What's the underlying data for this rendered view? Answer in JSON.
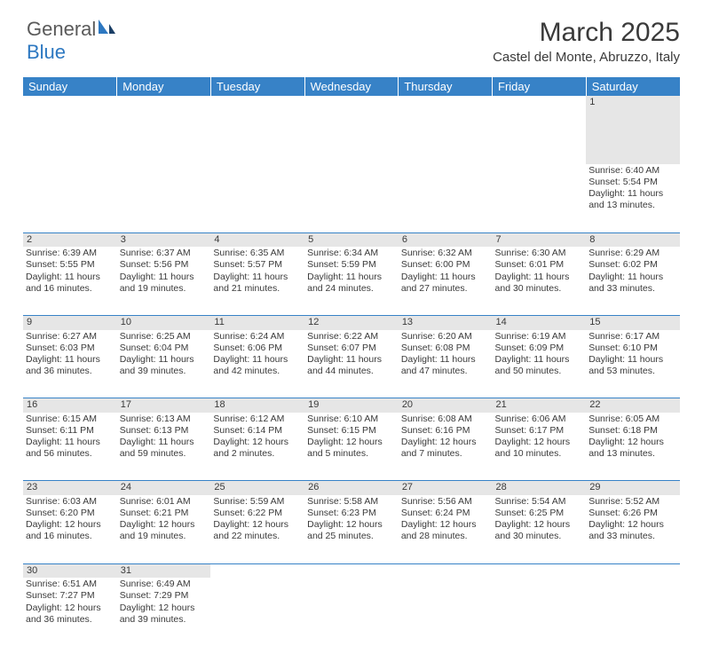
{
  "logo": {
    "part1": "General",
    "part2": "Blue"
  },
  "title": "March 2025",
  "location": "Castel del Monte, Abruzzo, Italy",
  "colors": {
    "header_bg": "#3782c7",
    "header_fg": "#ffffff",
    "daynum_bg": "#e6e6e6",
    "text": "#3a3a3a",
    "rule": "#3782c7"
  },
  "dayHeaders": [
    "Sunday",
    "Monday",
    "Tuesday",
    "Wednesday",
    "Thursday",
    "Friday",
    "Saturday"
  ],
  "weeks": [
    [
      null,
      null,
      null,
      null,
      null,
      null,
      {
        "n": "1",
        "sr": "6:40 AM",
        "ss": "5:54 PM",
        "dl": "11 hours and 13 minutes."
      }
    ],
    [
      {
        "n": "2",
        "sr": "6:39 AM",
        "ss": "5:55 PM",
        "dl": "11 hours and 16 minutes."
      },
      {
        "n": "3",
        "sr": "6:37 AM",
        "ss": "5:56 PM",
        "dl": "11 hours and 19 minutes."
      },
      {
        "n": "4",
        "sr": "6:35 AM",
        "ss": "5:57 PM",
        "dl": "11 hours and 21 minutes."
      },
      {
        "n": "5",
        "sr": "6:34 AM",
        "ss": "5:59 PM",
        "dl": "11 hours and 24 minutes."
      },
      {
        "n": "6",
        "sr": "6:32 AM",
        "ss": "6:00 PM",
        "dl": "11 hours and 27 minutes."
      },
      {
        "n": "7",
        "sr": "6:30 AM",
        "ss": "6:01 PM",
        "dl": "11 hours and 30 minutes."
      },
      {
        "n": "8",
        "sr": "6:29 AM",
        "ss": "6:02 PM",
        "dl": "11 hours and 33 minutes."
      }
    ],
    [
      {
        "n": "9",
        "sr": "6:27 AM",
        "ss": "6:03 PM",
        "dl": "11 hours and 36 minutes."
      },
      {
        "n": "10",
        "sr": "6:25 AM",
        "ss": "6:04 PM",
        "dl": "11 hours and 39 minutes."
      },
      {
        "n": "11",
        "sr": "6:24 AM",
        "ss": "6:06 PM",
        "dl": "11 hours and 42 minutes."
      },
      {
        "n": "12",
        "sr": "6:22 AM",
        "ss": "6:07 PM",
        "dl": "11 hours and 44 minutes."
      },
      {
        "n": "13",
        "sr": "6:20 AM",
        "ss": "6:08 PM",
        "dl": "11 hours and 47 minutes."
      },
      {
        "n": "14",
        "sr": "6:19 AM",
        "ss": "6:09 PM",
        "dl": "11 hours and 50 minutes."
      },
      {
        "n": "15",
        "sr": "6:17 AM",
        "ss": "6:10 PM",
        "dl": "11 hours and 53 minutes."
      }
    ],
    [
      {
        "n": "16",
        "sr": "6:15 AM",
        "ss": "6:11 PM",
        "dl": "11 hours and 56 minutes."
      },
      {
        "n": "17",
        "sr": "6:13 AM",
        "ss": "6:13 PM",
        "dl": "11 hours and 59 minutes."
      },
      {
        "n": "18",
        "sr": "6:12 AM",
        "ss": "6:14 PM",
        "dl": "12 hours and 2 minutes."
      },
      {
        "n": "19",
        "sr": "6:10 AM",
        "ss": "6:15 PM",
        "dl": "12 hours and 5 minutes."
      },
      {
        "n": "20",
        "sr": "6:08 AM",
        "ss": "6:16 PM",
        "dl": "12 hours and 7 minutes."
      },
      {
        "n": "21",
        "sr": "6:06 AM",
        "ss": "6:17 PM",
        "dl": "12 hours and 10 minutes."
      },
      {
        "n": "22",
        "sr": "6:05 AM",
        "ss": "6:18 PM",
        "dl": "12 hours and 13 minutes."
      }
    ],
    [
      {
        "n": "23",
        "sr": "6:03 AM",
        "ss": "6:20 PM",
        "dl": "12 hours and 16 minutes."
      },
      {
        "n": "24",
        "sr": "6:01 AM",
        "ss": "6:21 PM",
        "dl": "12 hours and 19 minutes."
      },
      {
        "n": "25",
        "sr": "5:59 AM",
        "ss": "6:22 PM",
        "dl": "12 hours and 22 minutes."
      },
      {
        "n": "26",
        "sr": "5:58 AM",
        "ss": "6:23 PM",
        "dl": "12 hours and 25 minutes."
      },
      {
        "n": "27",
        "sr": "5:56 AM",
        "ss": "6:24 PM",
        "dl": "12 hours and 28 minutes."
      },
      {
        "n": "28",
        "sr": "5:54 AM",
        "ss": "6:25 PM",
        "dl": "12 hours and 30 minutes."
      },
      {
        "n": "29",
        "sr": "5:52 AM",
        "ss": "6:26 PM",
        "dl": "12 hours and 33 minutes."
      }
    ],
    [
      {
        "n": "30",
        "sr": "6:51 AM",
        "ss": "7:27 PM",
        "dl": "12 hours and 36 minutes."
      },
      {
        "n": "31",
        "sr": "6:49 AM",
        "ss": "7:29 PM",
        "dl": "12 hours and 39 minutes."
      },
      null,
      null,
      null,
      null,
      null
    ]
  ],
  "labels": {
    "sunrise": "Sunrise:",
    "sunset": "Sunset:",
    "daylight": "Daylight:"
  }
}
